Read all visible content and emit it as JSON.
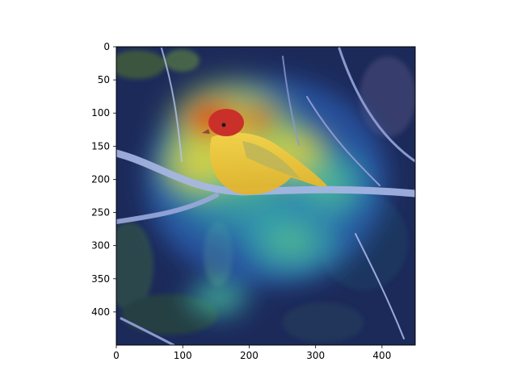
{
  "chart_data": {
    "type": "heatmap",
    "title": "",
    "xlabel": "",
    "ylabel": "",
    "xlim": [
      0,
      450
    ],
    "ylim": [
      450,
      0
    ],
    "y_inverted": true,
    "grid": false,
    "x_ticks": [
      0,
      100,
      200,
      300,
      400
    ],
    "x_tick_labels": [
      "0",
      "100",
      "200",
      "300",
      "400"
    ],
    "y_ticks": [
      0,
      50,
      100,
      150,
      200,
      250,
      300,
      350,
      400
    ],
    "y_tick_labels": [
      "0",
      "50",
      "100",
      "150",
      "200",
      "250",
      "300",
      "350",
      "400"
    ],
    "colormap": "jet",
    "background_image": "bird on branch in dark foliage (photo)",
    "hotspots": [
      {
        "x": 160,
        "y": 110,
        "intensity": 1.0
      },
      {
        "x": 235,
        "y": 110,
        "intensity": 0.85
      },
      {
        "x": 200,
        "y": 170,
        "intensity": 0.75
      },
      {
        "x": 130,
        "y": 150,
        "intensity": 0.6
      },
      {
        "x": 290,
        "y": 175,
        "intensity": 0.55
      },
      {
        "x": 265,
        "y": 250,
        "intensity": 0.5
      },
      {
        "x": 330,
        "y": 310,
        "intensity": 0.45
      },
      {
        "x": 380,
        "y": 230,
        "intensity": 0.4
      },
      {
        "x": 215,
        "y": 320,
        "intensity": 0.35
      },
      {
        "x": 180,
        "y": 60,
        "intensity": 0.5
      },
      {
        "x": 300,
        "y": 90,
        "intensity": 0.45
      }
    ]
  }
}
